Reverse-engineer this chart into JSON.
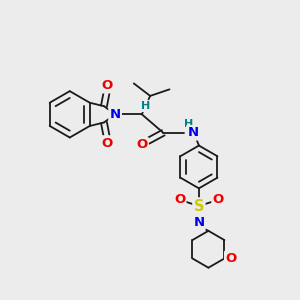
{
  "bg_color": "#ececec",
  "bond_color": "#1a1a1a",
  "bond_width": 1.3,
  "atom_colors": {
    "N": "#0000ee",
    "O": "#ee0000",
    "S": "#cccc00",
    "H": "#008080",
    "C": "#1a1a1a"
  },
  "font_size_atom": 9.5,
  "font_size_small": 8.0
}
